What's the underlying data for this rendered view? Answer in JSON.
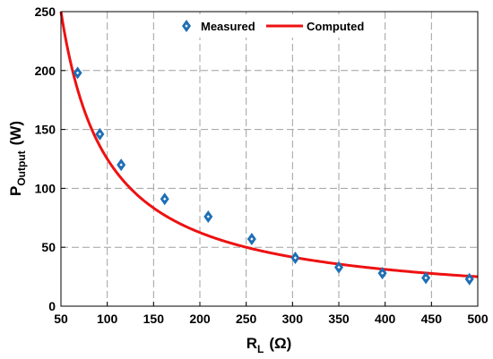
{
  "chart_data": {
    "type": "scatter",
    "title": "",
    "xlabel": "R",
    "xlabel_sub": "L",
    "xlabel_unit": "(Ω)",
    "ylabel": "P",
    "ylabel_sub": "Output",
    "ylabel_unit": "(W)",
    "xlim": [
      50,
      500
    ],
    "ylim": [
      0,
      250
    ],
    "xticks": [
      50,
      100,
      150,
      200,
      250,
      300,
      350,
      400,
      450,
      500
    ],
    "yticks": [
      0,
      50,
      100,
      150,
      200,
      250
    ],
    "grid": true,
    "legend_position": "top-center",
    "series": [
      {
        "name": "Measured",
        "kind": "markers",
        "marker": "diamond",
        "color": "#1f6fb5",
        "x": [
          68,
          92,
          115,
          162,
          209,
          256,
          303,
          350,
          397,
          444,
          491
        ],
        "y": [
          198,
          146,
          120,
          91,
          76,
          57,
          41,
          33,
          28,
          24,
          23
        ]
      },
      {
        "name": "Computed",
        "kind": "line",
        "color": "#ee1111",
        "formula": "12500/x"
      }
    ]
  }
}
